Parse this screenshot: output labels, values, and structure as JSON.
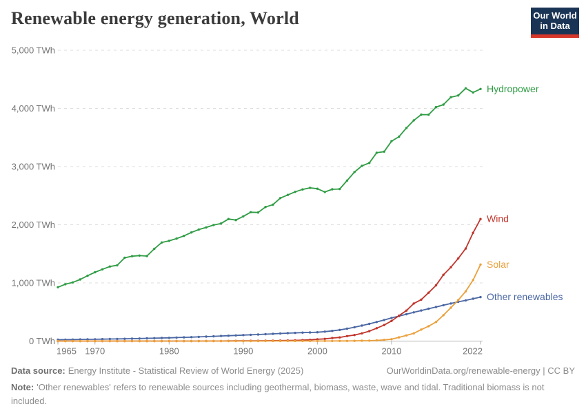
{
  "header": {
    "title": "Renewable energy generation, World",
    "logo": {
      "line1": "Our World",
      "line2": "in Data",
      "bg_color": "#1a3455",
      "accent_color": "#d7362a"
    }
  },
  "chart_data": {
    "type": "line",
    "title": "Renewable energy generation, World",
    "xlabel": "",
    "ylabel": "",
    "y_unit": "TWh",
    "x_min": 1965,
    "x_max": 2022,
    "ylim": [
      0,
      5000
    ],
    "grid": "horizontal-dashed",
    "legend": "line-end-labels",
    "x": [
      1965,
      1966,
      1967,
      1968,
      1969,
      1970,
      1971,
      1972,
      1973,
      1974,
      1975,
      1976,
      1977,
      1978,
      1979,
      1980,
      1981,
      1982,
      1983,
      1984,
      1985,
      1986,
      1987,
      1988,
      1989,
      1990,
      1991,
      1992,
      1993,
      1994,
      1995,
      1996,
      1997,
      1998,
      1999,
      2000,
      2001,
      2002,
      2003,
      2004,
      2005,
      2006,
      2007,
      2008,
      2009,
      2010,
      2011,
      2012,
      2013,
      2014,
      2015,
      2016,
      2017,
      2018,
      2019,
      2020,
      2021,
      2022
    ],
    "x_ticks": [
      "1965",
      "1970",
      "1980",
      "1990",
      "2000",
      "2010",
      "2022"
    ],
    "y_ticks": [
      {
        "v": 0,
        "label": "0 TWh"
      },
      {
        "v": 1000,
        "label": "1,000 TWh"
      },
      {
        "v": 2000,
        "label": "2,000 TWh"
      },
      {
        "v": 3000,
        "label": "3,000 TWh"
      },
      {
        "v": 4000,
        "label": "4,000 TWh"
      },
      {
        "v": 5000,
        "label": "5,000 TWh"
      }
    ],
    "series": [
      {
        "name": "Hydropower",
        "color": "#2f9c44",
        "values": [
          926,
          977,
          1008,
          1059,
          1123,
          1183,
          1233,
          1282,
          1303,
          1432,
          1459,
          1470,
          1462,
          1586,
          1695,
          1723,
          1762,
          1808,
          1868,
          1917,
          1954,
          1995,
          2021,
          2098,
          2080,
          2144,
          2215,
          2211,
          2305,
          2345,
          2458,
          2513,
          2566,
          2607,
          2634,
          2619,
          2563,
          2610,
          2614,
          2759,
          2906,
          3012,
          3063,
          3238,
          3257,
          3437,
          3514,
          3663,
          3794,
          3893,
          3892,
          4023,
          4065,
          4193,
          4222,
          4346,
          4274,
          4334
        ]
      },
      {
        "name": "Wind",
        "color": "#c0362c",
        "values": [
          0,
          0,
          0,
          0,
          0,
          0,
          0,
          0,
          0,
          0,
          0,
          0,
          0,
          0,
          0,
          0,
          0.1,
          0.2,
          0.3,
          0.4,
          0.6,
          1.1,
          1.7,
          2.3,
          3.2,
          3.9,
          4.6,
          4.9,
          5.8,
          7.2,
          8.3,
          9.4,
          12,
          16,
          21,
          31,
          38,
          52,
          63,
          85,
          104,
          133,
          171,
          221,
          276,
          346,
          437,
          524,
          646,
          712,
          832,
          958,
          1140,
          1270,
          1421,
          1591,
          1862,
          2098
        ]
      },
      {
        "name": "Solar",
        "color": "#eba03b",
        "values": [
          0,
          0,
          0,
          0,
          0,
          0,
          0,
          0,
          0,
          0,
          0,
          0,
          0,
          0,
          0,
          0,
          0,
          0,
          0,
          0,
          0,
          0,
          0,
          0,
          0,
          0.4,
          0.5,
          0.5,
          0.6,
          0.6,
          0.6,
          0.7,
          0.7,
          0.8,
          0.9,
          1.1,
          1.4,
          1.7,
          2.1,
          2.8,
          3.8,
          5.4,
          7.3,
          12,
          20,
          32,
          64,
          97,
          132,
          198,
          256,
          328,
          445,
          574,
          704,
          854,
          1049,
          1316
        ]
      },
      {
        "name": "Other renewables",
        "color": "#4a67a3",
        "values": [
          24,
          25,
          26,
          28,
          29,
          31,
          33,
          35,
          37,
          39,
          42,
          44,
          47,
          50,
          53,
          56,
          60,
          64,
          68,
          72,
          77,
          82,
          87,
          92,
          97,
          103,
          108,
          113,
          118,
          124,
          130,
          136,
          141,
          145,
          148,
          152,
          162,
          175,
          192,
          213,
          238,
          266,
          296,
          328,
          362,
          398,
          430,
          462,
          494,
          526,
          556,
          586,
          616,
          646,
          675,
          700,
          728,
          756
        ]
      }
    ],
    "draw_order": [
      0,
      3,
      1,
      2
    ],
    "colors": {
      "gridline": "#dedede",
      "axis": "#b3b3b3",
      "tick_text": "#757575"
    }
  },
  "footer": {
    "data_source_label": "Data source:",
    "data_source_text": "Energy Institute - Statistical Review of World Energy (2025)",
    "link_text": "OurWorldinData.org/renewable-energy | CC BY",
    "note_label": "Note:",
    "note_text": "'Other renewables' refers to renewable sources including geothermal, biomass, waste, wave and tidal. Traditional biomass is not included."
  }
}
